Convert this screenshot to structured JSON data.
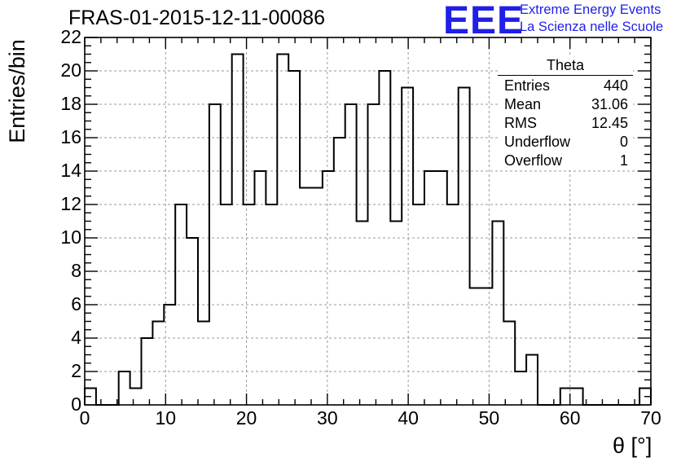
{
  "header": {
    "title": "FRAS-01-2015-12-11-00086",
    "logo": {
      "mark": "EEE",
      "line1": "Extreme Energy Events",
      "line2": "La Scienza nelle Scuole",
      "color": "#1f1fe8"
    }
  },
  "stats_box": {
    "title": "Theta",
    "rows": [
      {
        "label": "Entries",
        "value": "440"
      },
      {
        "label": "Mean",
        "value": "31.06"
      },
      {
        "label": "RMS",
        "value": "12.45"
      },
      {
        "label": "Underflow",
        "value": "0"
      },
      {
        "label": "Overflow",
        "value": "1"
      }
    ]
  },
  "chart_data": {
    "type": "bar",
    "title": "FRAS-01-2015-12-11-00086",
    "xlabel": "θ [°]",
    "ylabel": "Entries/bin",
    "xlim": [
      0,
      70
    ],
    "ylim": [
      0,
      22
    ],
    "bin_width": 1.4,
    "xticks": [
      "0",
      "10",
      "20",
      "30",
      "40",
      "50",
      "60",
      "70"
    ],
    "yticks": [
      "0",
      "2",
      "4",
      "6",
      "8",
      "10",
      "12",
      "14",
      "16",
      "18",
      "20",
      "22"
    ],
    "grid": true,
    "histogram_style": "step outline",
    "line_color": "#000000",
    "series": [
      {
        "name": "Theta",
        "bin_edges_start": [
          0,
          1.4,
          2.8,
          4.2,
          5.6,
          7.0,
          8.4,
          9.8,
          11.2,
          12.6,
          14.0,
          15.4,
          16.8,
          18.2,
          19.6,
          21.0,
          22.4,
          23.8,
          25.2,
          26.6,
          28.0,
          29.4,
          30.8,
          32.2,
          33.6,
          35.0,
          36.4,
          37.8,
          39.2,
          40.6,
          42.0,
          43.4,
          44.8,
          46.2,
          47.6,
          49.0,
          50.4,
          51.8,
          53.2,
          54.6,
          56.0,
          57.4,
          58.8,
          60.2,
          61.6,
          63.0,
          64.4,
          65.8,
          67.2,
          68.6
        ],
        "values": [
          1,
          0,
          0,
          2,
          1,
          4,
          5,
          6,
          12,
          10,
          5,
          18,
          12,
          21,
          12,
          14,
          12,
          21,
          20,
          13,
          13,
          14,
          16,
          18,
          11,
          18,
          20,
          11,
          19,
          12,
          14,
          14,
          12,
          19,
          7,
          7,
          11,
          5,
          2,
          3,
          0,
          0,
          1,
          1,
          0,
          0,
          0,
          0,
          0,
          1
        ]
      }
    ]
  }
}
